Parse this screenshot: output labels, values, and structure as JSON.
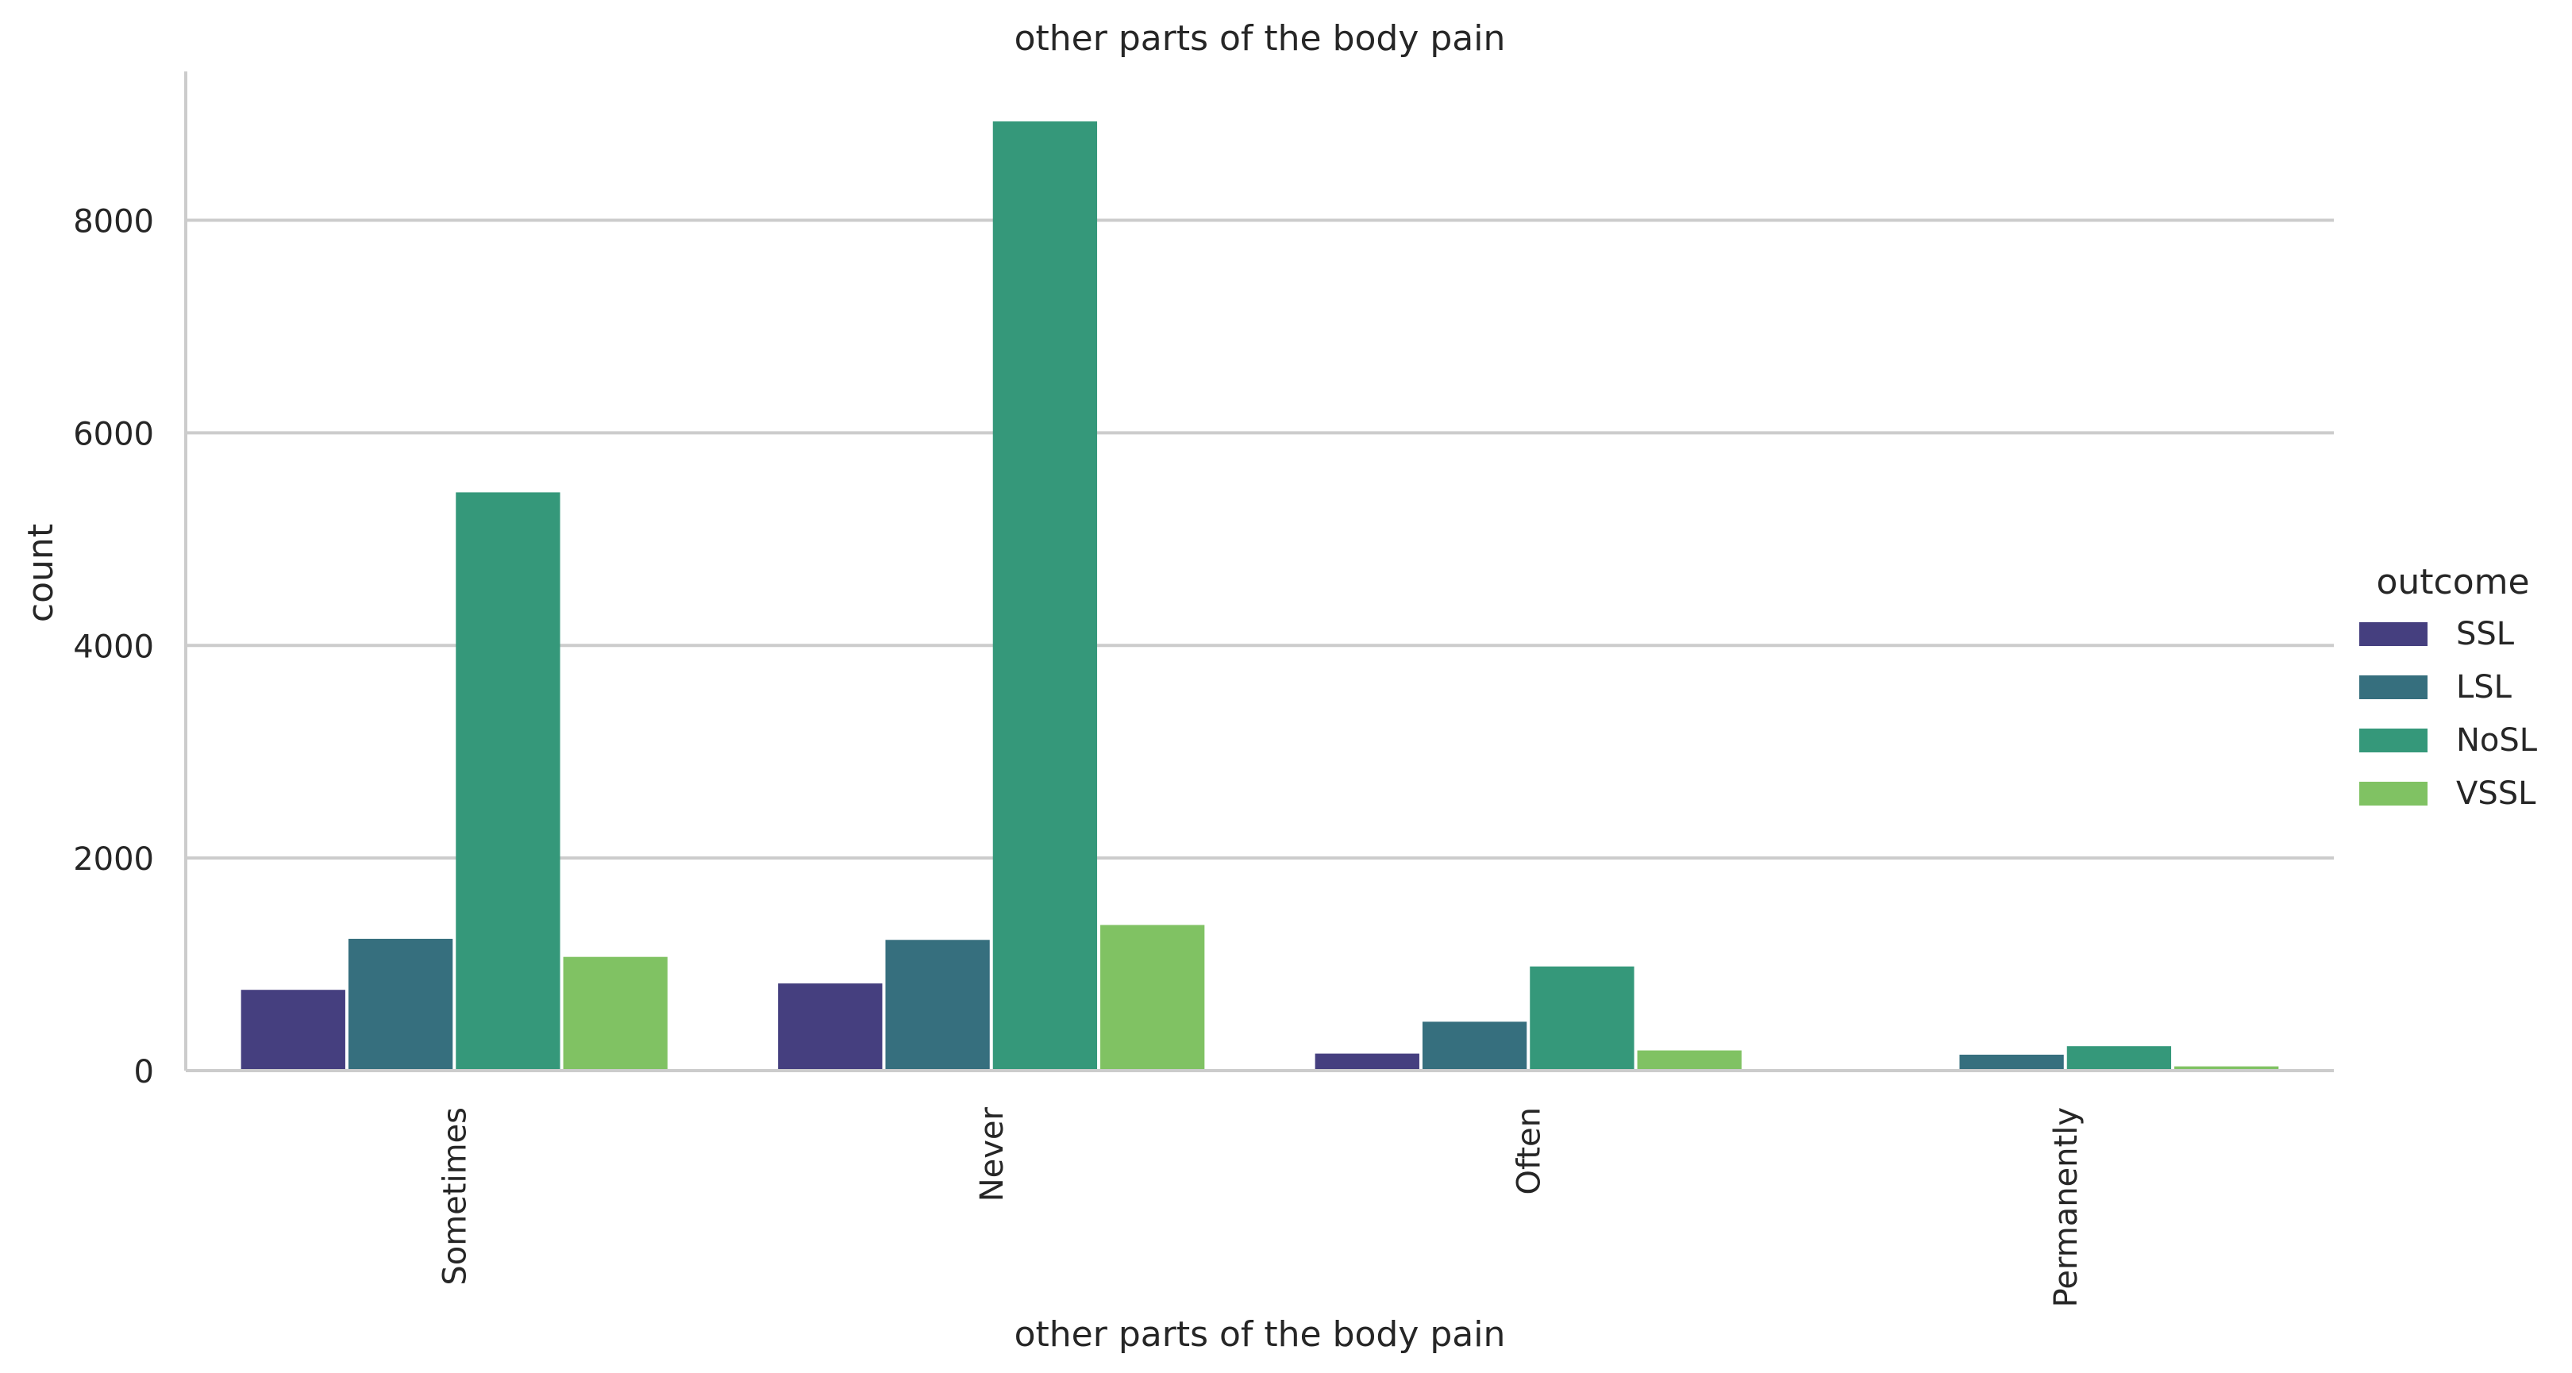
{
  "chart_data": {
    "type": "bar",
    "title": "other parts of the body pain",
    "xlabel": "other parts of the body pain",
    "ylabel": "count",
    "categories": [
      "Sometimes",
      "Never",
      "Often",
      "Permanently"
    ],
    "ylim": [
      0,
      9400
    ],
    "yticks": [
      "0",
      "2000",
      "4000",
      "6000",
      "8000"
    ],
    "grid": true,
    "legend": {
      "title": "outcome",
      "placement": "right"
    },
    "series": [
      {
        "name": "SSL",
        "color": "#453f7f",
        "values": [
          760,
          820,
          160,
          0
        ]
      },
      {
        "name": "LSL",
        "color": "#366f7e",
        "values": [
          1240,
          1230,
          460,
          150
        ]
      },
      {
        "name": "NoSL",
        "color": "#35987a",
        "values": [
          5440,
          8930,
          980,
          230
        ]
      },
      {
        "name": "VSSL",
        "color": "#80c263",
        "values": [
          1070,
          1370,
          190,
          40
        ]
      }
    ]
  }
}
